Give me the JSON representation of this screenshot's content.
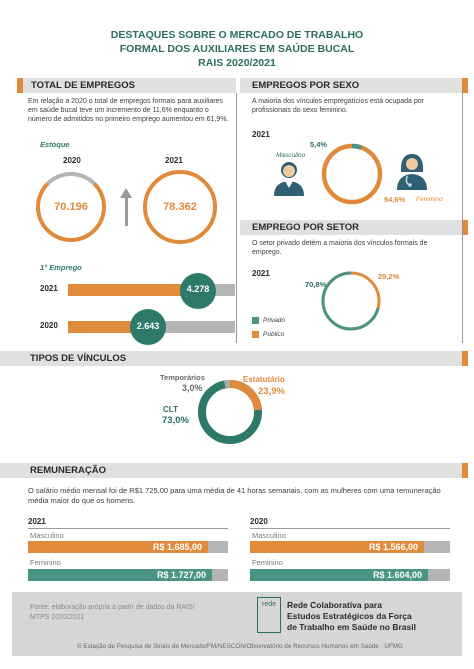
{
  "header": {
    "line1": "DESTAQUES SOBRE O MERCADO DE TRABALHO",
    "line2": "FORMAL DOS AUXILIARES EM SAÚDE BUCAL",
    "line3": "RAIS 2020/2021"
  },
  "total_empregos": {
    "heading": "TOTAL DE EMPREGOS",
    "text": "Em relação a 2020 o total de empregos formais para auxiliares em saúde bucal teve um incremento de 11,6% enquanto o número de admitidos no primeiro emprego aumentou em 61,9%.",
    "estoque_label": "Estoque",
    "year_a": "2020",
    "year_b": "2021",
    "value_a": "70.196",
    "value_b": "78.362",
    "primeiro_label": "1° Emprego",
    "bars": [
      {
        "year": "2021",
        "value": "4.278",
        "fraction": 0.78
      },
      {
        "year": "2020",
        "value": "2.643",
        "fraction": 0.48
      }
    ]
  },
  "empregos_sexo": {
    "heading": "EMPREGOS POR SEXO",
    "text": "A maioria dos vínculos empregatícios está ocupada por profissionais do sexo feminino.",
    "year": "2021",
    "masc_label": "Masculino",
    "fem_label": "Feminino",
    "masc_pct": "5,4%",
    "fem_pct": "94,6%",
    "masc_fraction": 0.054
  },
  "emprego_setor": {
    "heading": "EMPREGO POR SETOR",
    "text": "O setor privado detém a maioria dos vínculos formais de emprego.",
    "year": "2021",
    "privado_pct": "70,8%",
    "publico_pct": "29,2%",
    "privado_fraction": 0.708,
    "legend": [
      {
        "label": "Privado",
        "color": "#4a9485"
      },
      {
        "label": "Público",
        "color": "#e08a3c"
      }
    ]
  },
  "tipos_vinculos": {
    "heading": "TIPOS DE VÍNCULOS",
    "temp_label": "Temporários",
    "temp_pct": "3,0%",
    "est_label": "Estatutário",
    "est_pct": "23,9%",
    "clt_label": "CLT",
    "clt_pct": "73,0%"
  },
  "remuneracao": {
    "heading": "REMUNERAÇÃO",
    "text": "O salário médio mensal foi de R$1.725,00 para uma média de 41 horas semanais, com as mulheres com uma remuneração média maior do que os homens.",
    "groups": [
      {
        "year": "2021",
        "masc_label": "Masculino",
        "masc_value": "R$ 1.685,00",
        "fem_label": "Feminino",
        "fem_value": "R$ 1.727,00"
      },
      {
        "year": "2020",
        "masc_label": "Masculino",
        "masc_value": "R$ 1.566,00",
        "fem_label": "Feminino",
        "fem_value": "R$ 1.604,00"
      }
    ]
  },
  "footer": {
    "source": "Fonte: elaboração própria a partir de dados da RAIS/ MTPS 2020/2021",
    "logo_text": "rede",
    "org_line1": "Rede Colaborativa para",
    "org_line2": "Estudos Estratégicos da Força",
    "org_line3": "de Trabalho em Saúde no Brasil",
    "copyright": "© Estação de Pesquisa de Sinais de Mercado/FM/NESCON/Observatório de Recursos Humanos em Saúde · UFMG"
  },
  "colors": {
    "orange": "#e08a3c",
    "teal": "#4a9485",
    "dark_teal": "#2d6e63",
    "gray": "#b5b5b5"
  }
}
